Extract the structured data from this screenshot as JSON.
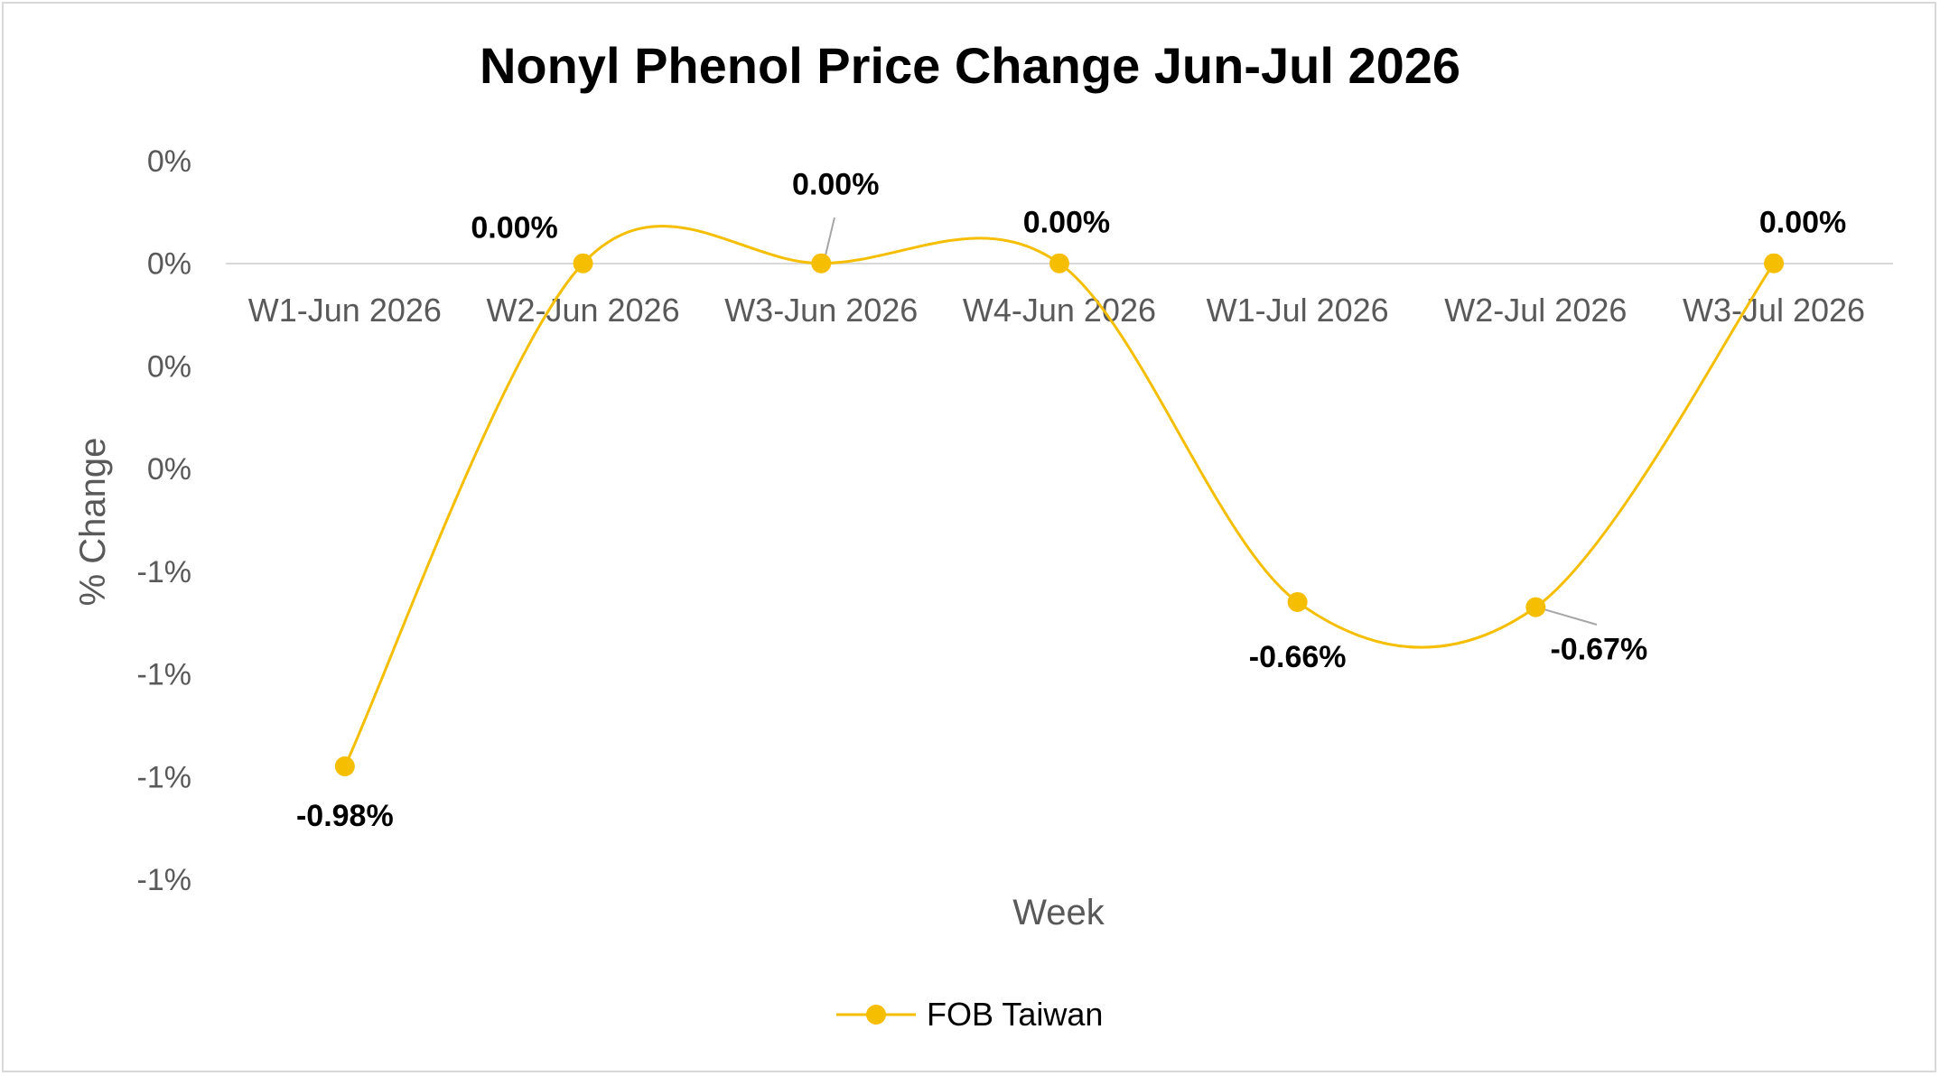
{
  "chart_data": {
    "type": "line",
    "title": "Nonyl Phenol Price Change Jun-Jul 2026",
    "xlabel": "Week",
    "ylabel": "% Change",
    "categories": [
      "W1-Jun 2026",
      "W2-Jun 2026",
      "W3-Jun 2026",
      "W4-Jun 2026",
      "W1-Jul 2026",
      "W2-Jul 2026",
      "W3-Jul 2026"
    ],
    "series": [
      {
        "name": "FOB Taiwan",
        "values": [
          -0.98,
          0.0,
          0.0,
          0.0,
          -0.66,
          -0.67,
          0.0
        ],
        "labels": [
          "-0.98%",
          "0.00%",
          "0.00%",
          "0.00%",
          "-0.66%",
          "-0.67%",
          "0.00%"
        ],
        "color": "#F5BE00",
        "smooth": true
      }
    ],
    "ylim": [
      -1.2,
      0.2
    ],
    "ytick_labels": [
      "0%",
      "0%",
      "0%",
      "0%",
      "-1%",
      "-1%",
      "-1%",
      "-1%"
    ],
    "grid": false,
    "legend": "bottom-center"
  }
}
